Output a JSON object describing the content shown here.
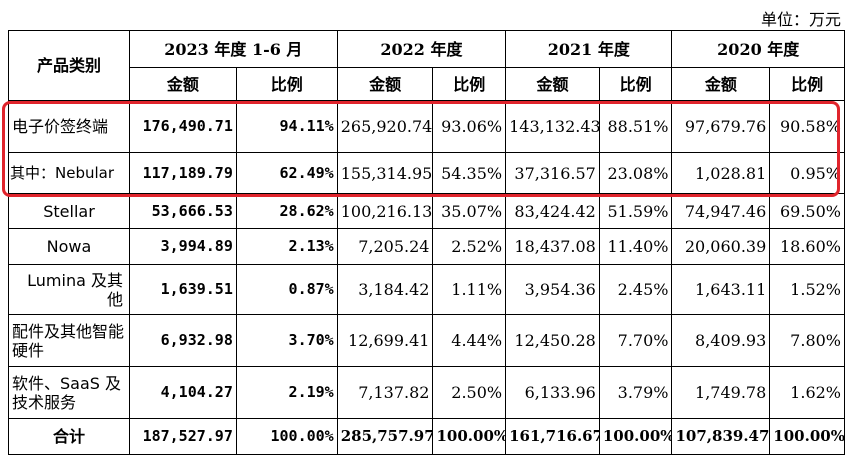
{
  "unit_label": "单位：万元",
  "headers": {
    "category": "产品类别",
    "periods": [
      "2023 年度 1-6 月",
      "2022 年度",
      "2021 年度",
      "2020 年度"
    ],
    "amount": "金额",
    "ratio": "比例"
  },
  "rows": [
    {
      "label": "电子价签终端",
      "cells": [
        "176,490.71",
        "94.11%",
        "265,920.74",
        "93.06%",
        "143,132.43",
        "88.51%",
        "97,679.76",
        "90.58%"
      ]
    },
    {
      "label": "其中：Nebular",
      "cells": [
        "117,189.79",
        "62.49%",
        "155,314.95",
        "54.35%",
        "37,316.57",
        "23.08%",
        "1,028.81",
        "0.95%"
      ]
    },
    {
      "label": "Stellar",
      "cells": [
        "53,666.53",
        "28.62%",
        "100,216.13",
        "35.07%",
        "83,424.42",
        "51.59%",
        "74,947.46",
        "69.50%"
      ]
    },
    {
      "label": "Nowa",
      "cells": [
        "3,994.89",
        "2.13%",
        "7,205.24",
        "2.52%",
        "18,437.08",
        "11.40%",
        "20,060.39",
        "18.60%"
      ]
    },
    {
      "label": "Lumina 及其他",
      "cells": [
        "1,639.51",
        "0.87%",
        "3,184.42",
        "1.11%",
        "3,954.36",
        "2.45%",
        "1,643.11",
        "1.52%"
      ]
    },
    {
      "label": "配件及其他智能硬件",
      "cells": [
        "6,932.98",
        "3.70%",
        "12,699.41",
        "4.44%",
        "12,450.28",
        "7.70%",
        "8,409.93",
        "7.80%"
      ]
    },
    {
      "label": "软件、SaaS 及技术服务",
      "cells": [
        "4,104.27",
        "2.19%",
        "7,137.82",
        "2.50%",
        "6,133.96",
        "3.79%",
        "1,749.78",
        "1.62%"
      ]
    },
    {
      "label": "合计",
      "cells": [
        "187,527.97",
        "100.00%",
        "285,757.97",
        "100.00%",
        "161,716.67",
        "100.00%",
        "107,839.47",
        "100.00%"
      ]
    }
  ],
  "highlight_color": "#e0242c"
}
